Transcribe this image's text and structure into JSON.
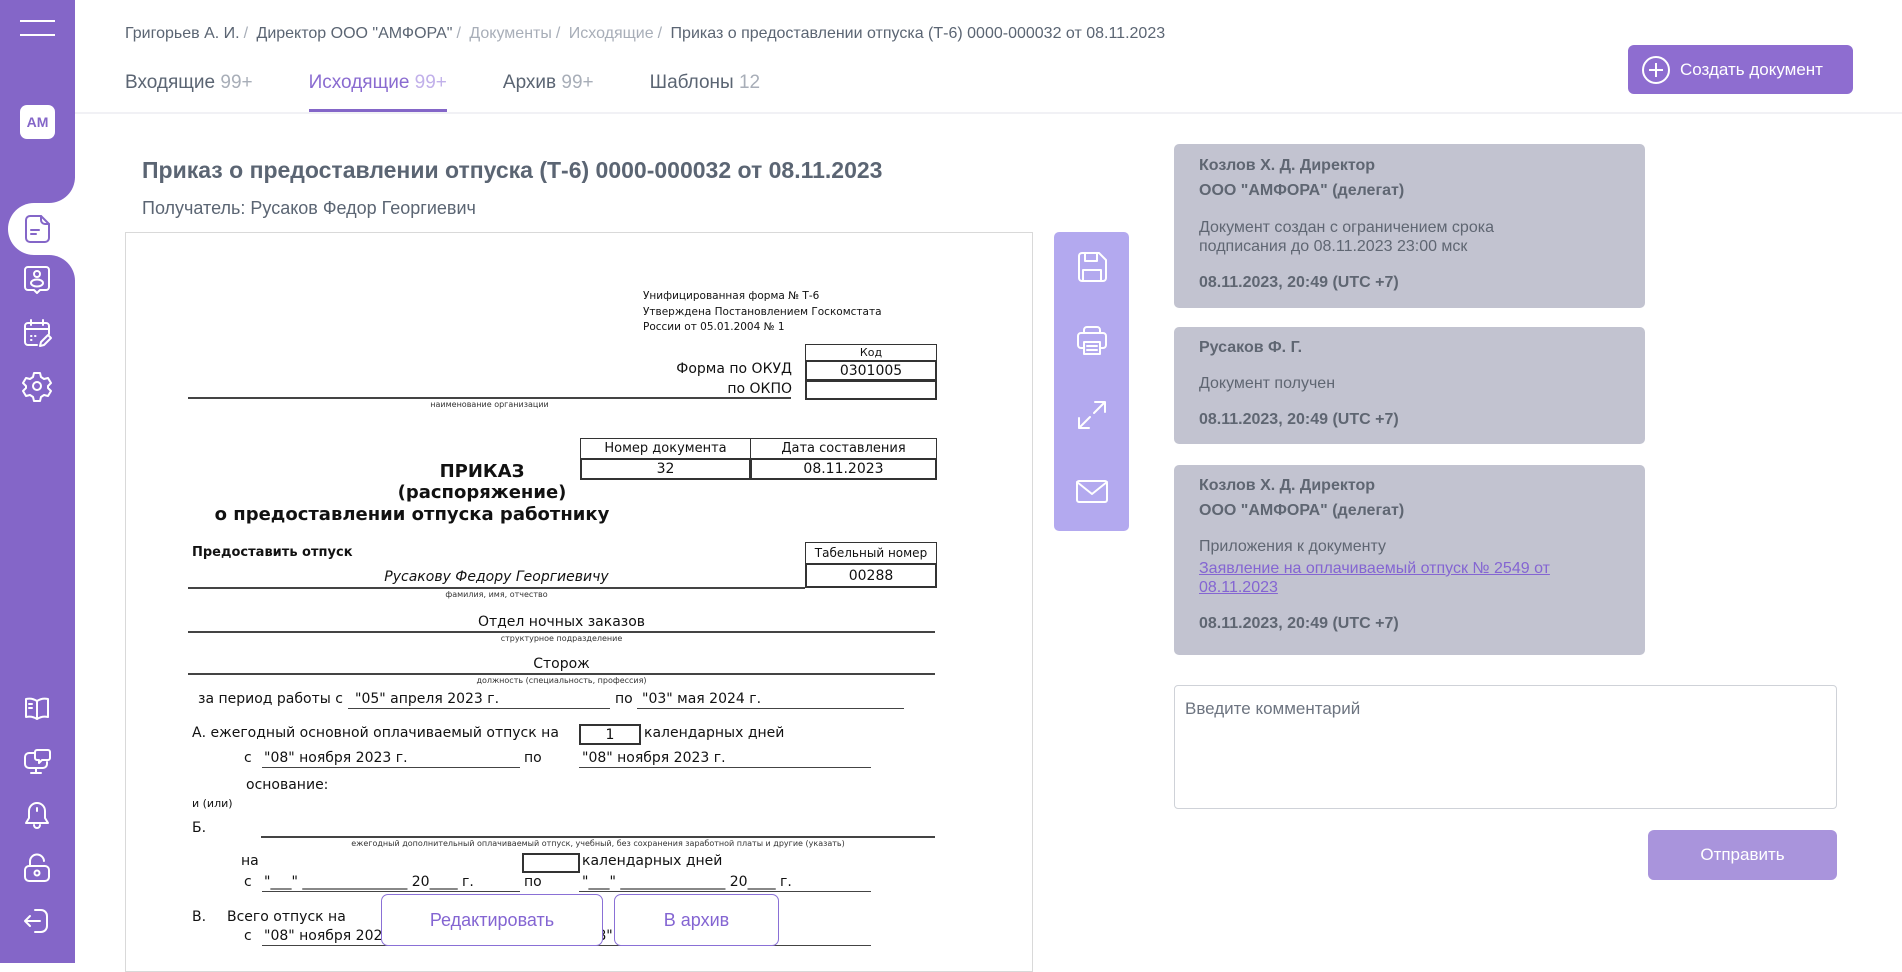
{
  "sidebar": {
    "avatar": "АМ",
    "items": [
      "documents",
      "contacts",
      "calendar",
      "settings",
      "knowledge-base",
      "support",
      "notifications",
      "security",
      "logout"
    ],
    "active": "documents",
    "color": "#8466c8"
  },
  "breadcrumb": [
    "Григорьев А. И.",
    "Директор ООО \"АМФОРА\"",
    "Документы",
    "Исходящие",
    "Приказ о предоставлении отпуска (Т-6) 0000-000032 от 08.11.2023"
  ],
  "breadcrumb_sep": "/",
  "tabs": [
    {
      "label": "Входящие",
      "count": "99+"
    },
    {
      "label": "Исходящие",
      "count": "99+",
      "active": true
    },
    {
      "label": "Архив",
      "count": "99+"
    },
    {
      "label": "Шаблоны",
      "count": "12"
    }
  ],
  "create_button": "Создать документ",
  "document": {
    "title": "Приказ о предоставлении отпуска (Т-6) 0000-000032 от 08.11.2023",
    "recipient": "Получатель: Русаков Федор Георгиевич",
    "form": {
      "unified": [
        "Унифицированная форма № Т-6",
        "Утверждена Постановлением Госкомстата",
        "России от 05.01.2004 № 1"
      ],
      "code_header": "Код",
      "okud_label": "Форма по ОКУД",
      "okud": "0301005",
      "okpo_label": "по ОКПО",
      "okpo": "",
      "org_caption": "наименование организации",
      "docnum_header": "Номер документа",
      "date_header": "Дата составления",
      "docnum": "32",
      "date": "08.11.2023",
      "heading1": "ПРИКАЗ",
      "heading2": "(распоряжение)",
      "heading3": "о предоставлении отпуска работнику",
      "grant": "Предоставить отпуск",
      "tab_header": "Табельный номер",
      "tab_number": "00288",
      "employee": "Русакову Федору Георгиевичу",
      "employee_caption": "фамилия, имя, отчество",
      "department": "Отдел ночных заказов",
      "department_caption": "структурное подразделение",
      "position": "Сторож",
      "position_caption": "должность (специальность, профессия)",
      "period_label": "за период работы с",
      "period_from": "\"05\" апреля 2023 г.",
      "po": "по",
      "period_to": "\"03\" мая 2024 г.",
      "a_label": "А. ежегодный основной оплачиваемый отпуск на",
      "a_days": "1",
      "days_label": "календарных дней",
      "s": "с",
      "a_from": "\"08\" ноября 2023 г.",
      "a_to": "\"08\" ноября 2023 г.",
      "basis": "основание:",
      "and_or": "и (или)",
      "b_label": "Б.",
      "b_caption": "ежегодный дополнительный оплачиваемый отпуск, учебный, без сохранения заработной платы и другие (указать)",
      "na": "на",
      "b_days": "",
      "b_from": "\"___\" _______________ 20____ г.",
      "b_to": "\"___\" _______________ 20____ г.",
      "v_label": "В.",
      "v_text": "Всего отпуск на",
      "v_from": "\"08\" ноября 2023 г.",
      "v_to": "\"08\" ноября 2023 г."
    }
  },
  "toolbar": [
    "save-icon",
    "print-icon",
    "expand-icon",
    "mail-icon"
  ],
  "history": [
    {
      "author": "Козлов Х. Д. Директор",
      "org": "ООО \"АМФОРА\" (делегат)",
      "text": "Документ создан с ограничением срока подписания до 08.11.2023 23:00 мск",
      "time": "08.11.2023, 20:49 (UTC +7)"
    },
    {
      "author": "Русаков Ф. Г.",
      "text": "Документ получен",
      "time": "08.11.2023, 20:49 (UTC +7)"
    },
    {
      "author": "Козлов Х. Д. Директор",
      "org": "ООО \"АМФОРА\" (делегат)",
      "text": "Приложения к документу",
      "link": "Заявление на оплачиваемый отпуск № 2549 от 08.11.2023",
      "time": "08.11.2023, 20:49 (UTC +7)"
    }
  ],
  "comment": {
    "placeholder": "Введите комментарий",
    "value": ""
  },
  "send_button": "Отправить",
  "edit_button": "Редактировать",
  "archive_button": "В архив"
}
